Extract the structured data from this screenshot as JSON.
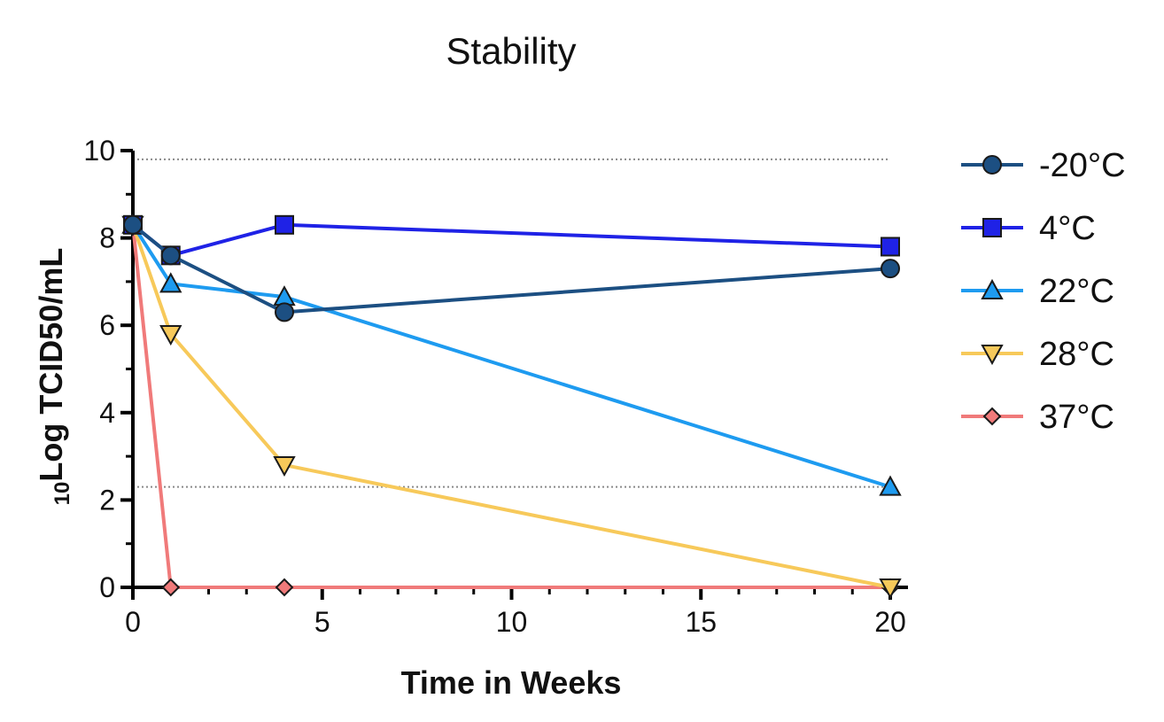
{
  "chart_data": {
    "type": "line",
    "title": "Stability",
    "xlabel": "Time in Weeks",
    "ylabel_sub": "10",
    "ylabel_main": "Log TCID50/mL",
    "xlim": [
      0,
      20
    ],
    "ylim": [
      0,
      10
    ],
    "xticks": [
      0,
      5,
      10,
      15,
      20
    ],
    "yticks": [
      0,
      2,
      4,
      6,
      8,
      10
    ],
    "reference_lines": [
      9.8,
      2.3
    ],
    "legend_position": "right",
    "series": [
      {
        "name": "-20°C",
        "color": "#1c4f82",
        "marker": "circle",
        "x": [
          0,
          1,
          4,
          20
        ],
        "y": [
          8.3,
          7.6,
          6.3,
          7.3
        ]
      },
      {
        "name": "4°C",
        "color": "#1f22e6",
        "marker": "square",
        "x": [
          0,
          1,
          4,
          20
        ],
        "y": [
          8.3,
          7.6,
          8.3,
          7.8
        ]
      },
      {
        "name": "22°C",
        "color": "#1e9bf0",
        "marker": "triangle-up",
        "x": [
          0,
          1,
          4,
          20
        ],
        "y": [
          8.3,
          6.95,
          6.65,
          2.3
        ]
      },
      {
        "name": "28°C",
        "color": "#f7c95a",
        "marker": "triangle-down",
        "x": [
          0,
          1,
          4,
          20
        ],
        "y": [
          8.3,
          5.8,
          2.8,
          0
        ]
      },
      {
        "name": "37°C",
        "color": "#f07a7a",
        "marker": "diamond",
        "x": [
          0,
          1,
          4,
          20
        ],
        "y": [
          8.3,
          0,
          0,
          0
        ]
      }
    ]
  }
}
